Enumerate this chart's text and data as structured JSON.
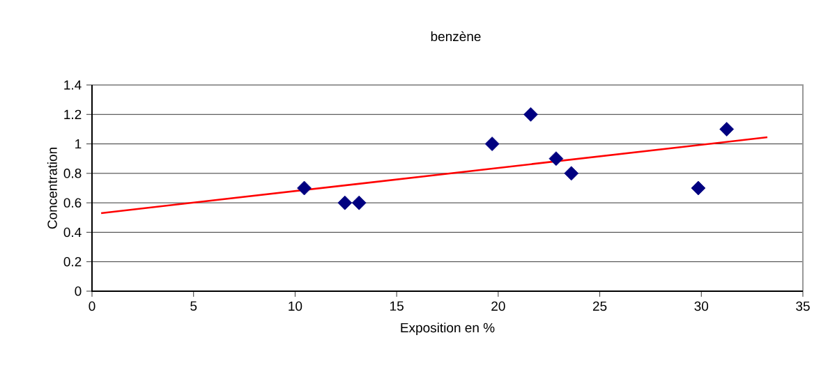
{
  "chart_data": {
    "type": "scatter",
    "title": "benzène",
    "xlabel": "Exposition en %",
    "ylabel": "Concentration",
    "xlim": [
      0,
      35
    ],
    "ylim": [
      0,
      1.4
    ],
    "xticks": [
      0,
      5,
      10,
      15,
      20,
      25,
      30,
      35
    ],
    "yticks": [
      0,
      0.2,
      0.4,
      0.6,
      0.8,
      1,
      1.2,
      1.4
    ],
    "grid": "y",
    "marker": "diamond",
    "series": [
      {
        "color": "#000080",
        "x": [
          10.45,
          12.45,
          13.15,
          19.7,
          21.6,
          22.85,
          23.6,
          29.85,
          31.25
        ],
        "values": [
          0.7,
          0.6,
          0.6,
          1.0,
          1.2,
          0.9,
          0.8,
          0.7,
          1.1
        ]
      },
      {
        "type": "line",
        "color": "#ff0000",
        "marker": "none",
        "line_style": "solid",
        "x": [
          0.45,
          33.25
        ],
        "values": [
          0.53,
          1.045
        ]
      }
    ]
  }
}
